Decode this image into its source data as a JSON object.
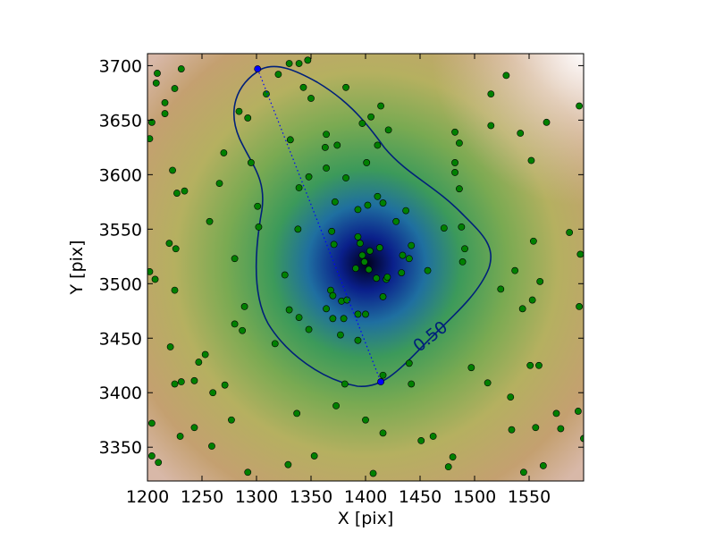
{
  "chart_data": {
    "type": "scatter",
    "x_label": "X [pix]",
    "y_label": "Y [pix]",
    "xlim": [
      1200,
      1600
    ],
    "ylim": [
      3319,
      3711
    ],
    "xticks": [
      1200,
      1250,
      1300,
      1350,
      1400,
      1450,
      1500,
      1550
    ],
    "yticks": [
      3350,
      3400,
      3450,
      3500,
      3550,
      3600,
      3650,
      3700
    ],
    "contour_label": "0.50",
    "series": [
      {
        "color": "#008000",
        "x": [
          1204,
          1209,
          1208,
          1216,
          1216,
          1225,
          1231,
          1202,
          1223,
          1227,
          1234,
          1202,
          1207,
          1220,
          1226,
          1225,
          1221,
          1247,
          1253,
          1243,
          1225,
          1231,
          1260,
          1271,
          1204,
          1230,
          1259,
          1243,
          1277,
          1204,
          1210,
          1292,
          1257,
          1266,
          1270,
          1284,
          1292,
          1295,
          1301,
          1302,
          1280,
          1289,
          1280,
          1287,
          1317,
          1309,
          1320,
          1330,
          1339,
          1347,
          1343,
          1350,
          1382,
          1414,
          1405,
          1397,
          1421,
          1411,
          1331,
          1364,
          1363,
          1374,
          1401,
          1382,
          1364,
          1348,
          1339,
          1372,
          1393,
          1402,
          1411,
          1416,
          1428,
          1437,
          1338,
          1369,
          1371,
          1395,
          1413,
          1404,
          1399,
          1391,
          1434,
          1442,
          1440,
          1433,
          1457,
          1472,
          1488,
          1491,
          1489,
          1419,
          1420,
          1410,
          1416,
          1368,
          1370,
          1378,
          1383,
          1326,
          1330,
          1339,
          1364,
          1370,
          1380,
          1393,
          1400,
          1348,
          1377,
          1393,
          1416,
          1440,
          1442,
          1381,
          1373,
          1400,
          1337,
          1416,
          1451,
          1462,
          1476,
          1480,
          1407,
          1329,
          1353,
          1482,
          1486,
          1482,
          1482,
          1486,
          1515,
          1515,
          1529,
          1542,
          1566,
          1552,
          1554,
          1537,
          1524,
          1553,
          1544,
          1560,
          1497,
          1512,
          1533,
          1551,
          1559,
          1534,
          1556,
          1575,
          1579,
          1563,
          1545,
          1587,
          1596,
          1597,
          1596,
          1595,
          1600,
          1393,
          1397,
          1403
        ],
        "y": [
          3648,
          3693,
          3684,
          3666,
          3656,
          3679,
          3697,
          3633,
          3604,
          3583,
          3585,
          3511,
          3504,
          3537,
          3532,
          3494,
          3442,
          3428,
          3435,
          3411,
          3408,
          3410,
          3400,
          3407,
          3372,
          3360,
          3351,
          3368,
          3375,
          3342,
          3336,
          3327,
          3557,
          3592,
          3620,
          3658,
          3652,
          3611,
          3571,
          3552,
          3523,
          3479,
          3463,
          3457,
          3445,
          3674,
          3692,
          3702,
          3702,
          3705,
          3680,
          3670,
          3680,
          3663,
          3653,
          3647,
          3641,
          3627,
          3632,
          3637,
          3625,
          3627,
          3611,
          3597,
          3606,
          3598,
          3588,
          3575,
          3568,
          3572,
          3580,
          3574,
          3557,
          3567,
          3550,
          3548,
          3536,
          3537,
          3533,
          3530,
          3520,
          3514,
          3526,
          3535,
          3523,
          3510,
          3512,
          3551,
          3552,
          3532,
          3520,
          3504,
          3506,
          3505,
          3488,
          3494,
          3489,
          3484,
          3485,
          3508,
          3476,
          3469,
          3477,
          3468,
          3468,
          3472,
          3472,
          3458,
          3453,
          3448,
          3416,
          3427,
          3408,
          3408,
          3388,
          3375,
          3381,
          3363,
          3356,
          3360,
          3332,
          3341,
          3326,
          3334,
          3342,
          3639,
          3629,
          3611,
          3602,
          3587,
          3645,
          3674,
          3691,
          3638,
          3648,
          3613,
          3539,
          3512,
          3495,
          3485,
          3477,
          3502,
          3423,
          3409,
          3396,
          3425,
          3425,
          3366,
          3368,
          3381,
          3367,
          3333,
          3327,
          3547,
          3663,
          3527,
          3479,
          3383,
          3358,
          3543,
          3526,
          3513
        ]
      },
      {
        "color": "#0000ff",
        "linestyle": "dotted",
        "x": [
          1301,
          1414
        ],
        "y": [
          3697,
          3410
        ]
      }
    ]
  }
}
